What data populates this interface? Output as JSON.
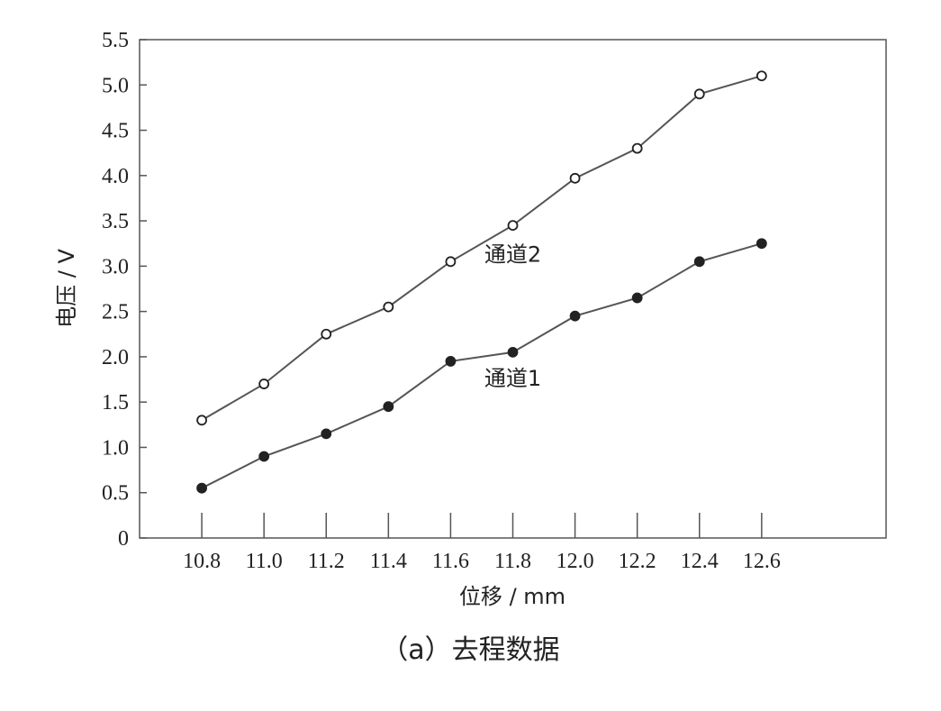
{
  "chart_data": {
    "type": "line",
    "x": [
      10.8,
      11.0,
      11.2,
      11.4,
      11.6,
      11.8,
      12.0,
      12.2,
      12.4,
      12.6
    ],
    "x_tick_labels": [
      "10.8",
      "11.0",
      "11.2",
      "11.4",
      "11.6",
      "11.8",
      "12.0",
      "12.2",
      "12.4",
      "12.6"
    ],
    "y_tick_labels": [
      "0",
      "0.5",
      "1.0",
      "1.5",
      "2.0",
      "2.5",
      "3.0",
      "3.5",
      "4.0",
      "4.5",
      "5.0",
      "5.5"
    ],
    "xlabel": "位移 / mm",
    "ylabel": "电压 / V",
    "xlim": [
      10.6,
      13.0
    ],
    "ylim": [
      0,
      5.5
    ],
    "grid": false,
    "series": [
      {
        "name": "通道1",
        "marker": "filled-circle",
        "label_at": [
          11.8,
          1.68
        ],
        "values": [
          0.55,
          0.9,
          1.15,
          1.45,
          1.95,
          2.05,
          2.45,
          2.65,
          3.05,
          3.25
        ]
      },
      {
        "name": "通道2",
        "marker": "open-circle",
        "label_at": [
          11.8,
          3.05
        ],
        "values": [
          1.3,
          1.7,
          2.25,
          2.55,
          3.05,
          3.45,
          3.97,
          4.3,
          4.9,
          5.1
        ]
      }
    ],
    "colors": {
      "line": "#555555",
      "marker": "#222222",
      "axis": "#555555"
    }
  },
  "caption": "（a）去程数据"
}
